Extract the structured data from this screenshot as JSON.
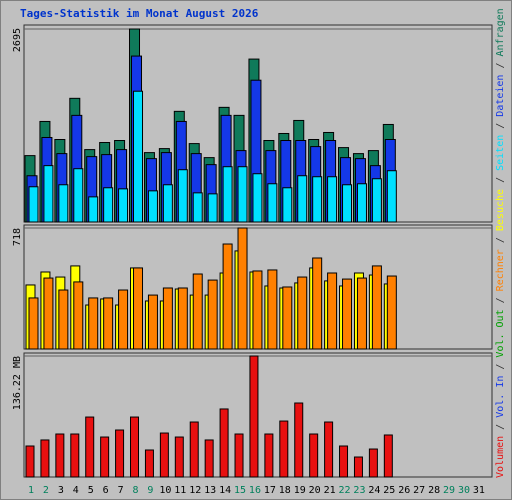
{
  "legend_separator": " / ",
  "chart_data": [
    {
      "type": "bar",
      "title": "Tages-Statistik im Monat August 2026",
      "ylim": [
        0,
        2695
      ],
      "yticks": [
        2695
      ],
      "series": [
        {
          "name": "Anfragen",
          "color": "#0f7a5a",
          "values": [
            927,
            1404,
            1152,
            1727,
            1011,
            1110,
            1138,
            2695,
            969,
            1025,
            1545,
            1095,
            899,
            1601,
            1489,
            2275,
            1138,
            1236,
            1418,
            1152,
            1250,
            1039,
            955,
            997,
            1362,
            null,
            null,
            null,
            null,
            null,
            null
          ]
        },
        {
          "name": "Dateien",
          "color": "#1438e8",
          "values": [
            646,
            1180,
            955,
            1489,
            913,
            941,
            1011,
            2317,
            885,
            969,
            1404,
            955,
            801,
            1489,
            997,
            1980,
            997,
            1138,
            1138,
            1053,
            1138,
            899,
            885,
            787,
            1152,
            null,
            null,
            null,
            null,
            null,
            null
          ]
        },
        {
          "name": "Seiten",
          "color": "#00e0ff",
          "values": [
            492,
            787,
            520,
            744,
            351,
            478,
            463,
            1826,
            435,
            520,
            730,
            407,
            393,
            772,
            772,
            674,
            534,
            478,
            646,
            632,
            632,
            520,
            534,
            604,
            716,
            null,
            null,
            null,
            null,
            null,
            null
          ]
        }
      ]
    },
    {
      "type": "bar",
      "ylim": [
        0,
        718
      ],
      "yticks": [
        718
      ],
      "series": [
        {
          "name": "Besuche",
          "color": "#ffff00",
          "values": [
            380,
            457,
            427,
            493,
            261,
            297,
            261,
            481,
            285,
            285,
            356,
            320,
            320,
            451,
            582,
            457,
            374,
            362,
            392,
            481,
            404,
            374,
            451,
            439,
            386,
            null,
            null,
            null,
            null,
            null,
            null
          ]
        },
        {
          "name": "Rechner",
          "color": "#ff8000",
          "values": [
            303,
            421,
            350,
            398,
            303,
            303,
            350,
            481,
            320,
            362,
            362,
            445,
            409,
            623,
            718,
            463,
            469,
            368,
            427,
            540,
            451,
            415,
            421,
            493,
            433,
            null,
            null,
            null,
            null,
            null,
            null
          ]
        }
      ]
    },
    {
      "type": "bar",
      "ylim": [
        0,
        136.22
      ],
      "yticks": [
        {
          "value": 136.22,
          "label": "136.22 MB"
        }
      ],
      "categories": [
        "1",
        "2",
        "3",
        "4",
        "5",
        "6",
        "7",
        "8",
        "9",
        "10",
        "11",
        "12",
        "13",
        "14",
        "15",
        "16",
        "17",
        "18",
        "19",
        "20",
        "21",
        "22",
        "23",
        "24",
        "25",
        "26",
        "27",
        "28",
        "29",
        "30",
        "31"
      ],
      "category_colors": [
        "#00805c",
        "#00805c",
        "#000000",
        "#000000",
        "#000000",
        "#000000",
        "#000000",
        "#00805c",
        "#00805c",
        "#000000",
        "#000000",
        "#000000",
        "#000000",
        "#000000",
        "#00805c",
        "#00805c",
        "#000000",
        "#000000",
        "#000000",
        "#000000",
        "#000000",
        "#00805c",
        "#00805c",
        "#000000",
        "#000000",
        "#000000",
        "#000000",
        "#000000",
        "#00805c",
        "#00805c",
        "#000000"
      ],
      "series": [
        {
          "name": "Volumen",
          "color": "#e81010",
          "values": [
            34.9,
            41.7,
            48.4,
            48.4,
            67.5,
            45.0,
            52.9,
            67.5,
            30.4,
            49.5,
            45.0,
            61.9,
            41.7,
            76.6,
            48.4,
            136.22,
            48.4,
            63.0,
            83.3,
            48.4,
            61.9,
            34.9,
            22.5,
            31.5,
            47.3,
            null,
            null,
            null,
            null,
            null,
            null
          ]
        },
        {
          "name": "Vol. In",
          "color": "#1438e8",
          "values": [
            null,
            null,
            null,
            null,
            null,
            null,
            null,
            null,
            null,
            null,
            null,
            null,
            null,
            null,
            null,
            null,
            null,
            null,
            null,
            null,
            null,
            null,
            null,
            null,
            null,
            null,
            null,
            null,
            null,
            null,
            null
          ]
        },
        {
          "name": "Vol. Out",
          "color": "#00a000",
          "values": [
            null,
            null,
            null,
            null,
            null,
            null,
            null,
            null,
            null,
            null,
            null,
            null,
            null,
            null,
            null,
            null,
            null,
            null,
            null,
            null,
            null,
            null,
            null,
            null,
            null,
            null,
            null,
            null,
            null,
            null,
            null
          ]
        }
      ]
    }
  ]
}
